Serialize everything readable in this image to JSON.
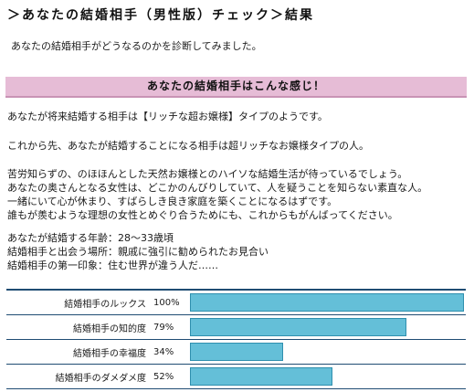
{
  "page": {
    "title": "＞あなたの結婚相手（男性版）チェック＞結果",
    "intro": "あなたの結婚相手がどうなるのかを診断してみました。"
  },
  "section": {
    "heading": "あなたの結婚相手はこんな感じ！"
  },
  "result": {
    "p1": [
      "あなたが将来結婚する相手は【リッチな超お嬢様】タイプのようです。"
    ],
    "p2": [
      "これから先、あなたが結婚することになる相手は超リッチなお嬢様タイプの人。"
    ],
    "p3": [
      "苦労知らずの、のほほんとした天然お嬢様とのハイソな結婚生活が待っているでしょう。",
      "あなたの奥さんとなる女性は、どこかのんびりしていて、人を疑うことを知らない素直な人。",
      "一緒にいて心が休まり、すばらしき良き家庭を築くことになるはずです。",
      "誰もが羨むような理想の女性とめぐり合うためにも、これからもがんばってください。"
    ],
    "p4": [
      "あなたが結婚する年齢：28～33歳頃",
      "結婚相手と出会う場所：親戚に強引に勧められたお見合い",
      "結婚相手の第一印象：住む世界が違う人だ……"
    ]
  },
  "stats": [
    {
      "label": "結婚相手のルックス",
      "percent_text": "100%",
      "value": 100
    },
    {
      "label": "結婚相手の知的度",
      "percent_text": "79%",
      "value": 79
    },
    {
      "label": "結婚相手の幸福度",
      "percent_text": "34%",
      "value": 34
    },
    {
      "label": "結婚相手のダメダメ度",
      "percent_text": "52%",
      "value": 52
    }
  ],
  "colors": {
    "band": "#e6bcd6",
    "bar": "#64bfd8",
    "rule": "#1f4c73"
  }
}
